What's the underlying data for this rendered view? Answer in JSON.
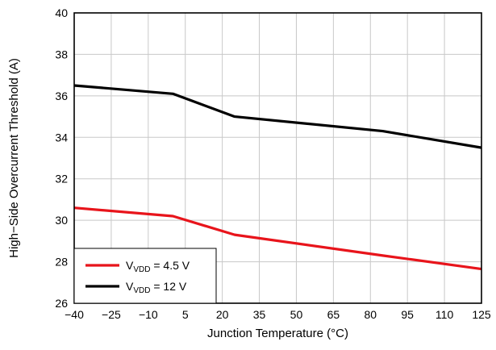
{
  "chart_data": {
    "type": "line",
    "title": "",
    "xlabel": "Junction Temperature (°C)",
    "ylabel": "High−Side Overcurrent Threshold (A)",
    "xlim": [
      -40,
      125
    ],
    "ylim": [
      26,
      40
    ],
    "x_ticks": [
      -40,
      -25,
      -10,
      5,
      20,
      35,
      50,
      65,
      80,
      95,
      110,
      125
    ],
    "x_tick_labels": [
      "−40",
      "−25",
      "−10",
      "5",
      "20",
      "35",
      "50",
      "65",
      "80",
      "95",
      "110",
      "125"
    ],
    "y_ticks": [
      26,
      28,
      30,
      32,
      34,
      36,
      38,
      40
    ],
    "y_tick_labels": [
      "26",
      "28",
      "30",
      "32",
      "34",
      "36",
      "38",
      "40"
    ],
    "grid": true,
    "legend_position": "bottom-left",
    "series": [
      {
        "name": "V_VDD = 4.5 V",
        "legend_prefix": "V",
        "legend_sub": "VDD",
        "legend_suffix": " = 4.5 V",
        "color": "#e8141b",
        "x": [
          -40,
          0,
          25,
          85,
          125
        ],
        "y": [
          30.6,
          30.2,
          29.3,
          28.3,
          27.65
        ]
      },
      {
        "name": "V_VDD = 12 V",
        "legend_prefix": "V",
        "legend_sub": "VDD",
        "legend_suffix": " = 12 V",
        "color": "#000000",
        "x": [
          -40,
          0,
          25,
          85,
          125
        ],
        "y": [
          36.5,
          36.1,
          35.0,
          34.3,
          33.5
        ]
      }
    ]
  }
}
